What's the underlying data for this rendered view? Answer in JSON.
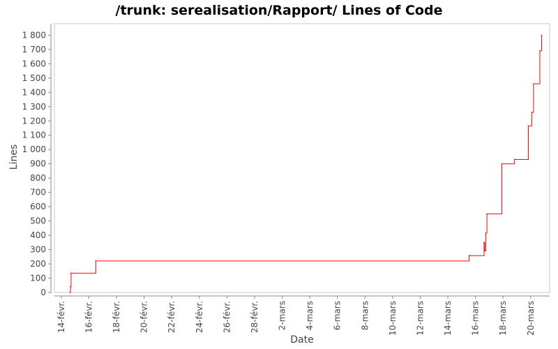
{
  "chart_data": {
    "type": "line",
    "title": "/trunk: serealisation/Rapport/ Lines of Code",
    "xlabel": "Date",
    "ylabel": "Lines",
    "x_axis": {
      "kind": "date",
      "range": [
        "2009-02-13T12:00:00",
        "2009-03-21T09:00:00"
      ],
      "ticks": [
        {
          "date": "2009-02-14",
          "label": "14-févr."
        },
        {
          "date": "2009-02-16",
          "label": "16-févr."
        },
        {
          "date": "2009-02-18",
          "label": "18-févr."
        },
        {
          "date": "2009-02-20",
          "label": "20-févr."
        },
        {
          "date": "2009-02-22",
          "label": "22-févr."
        },
        {
          "date": "2009-02-24",
          "label": "24-févr."
        },
        {
          "date": "2009-02-26",
          "label": "26-févr."
        },
        {
          "date": "2009-02-28",
          "label": "28-févr."
        },
        {
          "date": "2009-03-02",
          "label": "2-mars"
        },
        {
          "date": "2009-03-04",
          "label": "4-mars"
        },
        {
          "date": "2009-03-06",
          "label": "6-mars"
        },
        {
          "date": "2009-03-08",
          "label": "8-mars"
        },
        {
          "date": "2009-03-10",
          "label": "10-mars"
        },
        {
          "date": "2009-03-12",
          "label": "12-mars"
        },
        {
          "date": "2009-03-14",
          "label": "14-mars"
        },
        {
          "date": "2009-03-16",
          "label": "16-mars"
        },
        {
          "date": "2009-03-18",
          "label": "18-mars"
        },
        {
          "date": "2009-03-20",
          "label": "20-mars"
        }
      ]
    },
    "y_axis": {
      "range": [
        0,
        1880
      ],
      "ticks": [
        {
          "value": 0,
          "label": "0"
        },
        {
          "value": 100,
          "label": "100"
        },
        {
          "value": 200,
          "label": "200"
        },
        {
          "value": 300,
          "label": "300"
        },
        {
          "value": 400,
          "label": "400"
        },
        {
          "value": 500,
          "label": "500"
        },
        {
          "value": 600,
          "label": "600"
        },
        {
          "value": 700,
          "label": "700"
        },
        {
          "value": 800,
          "label": "800"
        },
        {
          "value": 900,
          "label": "900"
        },
        {
          "value": 1000,
          "label": "1 000"
        },
        {
          "value": 1100,
          "label": "1 100"
        },
        {
          "value": 1200,
          "label": "1 200"
        },
        {
          "value": 1300,
          "label": "1 300"
        },
        {
          "value": 1400,
          "label": "1 400"
        },
        {
          "value": 1500,
          "label": "1 500"
        },
        {
          "value": 1600,
          "label": "1 600"
        },
        {
          "value": 1700,
          "label": "1 700"
        },
        {
          "value": 1800,
          "label": "1 800"
        }
      ]
    },
    "grid": false,
    "legend": "none",
    "line_color": "#ff0000",
    "step": true,
    "series": [
      {
        "points": [
          {
            "x": "2009-02-14T15:00:00",
            "y": 0
          },
          {
            "x": "2009-02-14T16:00:00",
            "y": 40
          },
          {
            "x": "2009-02-14T17:00:00",
            "y": 135
          },
          {
            "x": "2009-02-16T12:00:00",
            "y": 220
          },
          {
            "x": "2009-03-15T13:00:00",
            "y": 258
          },
          {
            "x": "2009-03-16T15:00:00",
            "y": 350
          },
          {
            "x": "2009-03-16T16:00:00",
            "y": 290
          },
          {
            "x": "2009-03-16T18:00:00",
            "y": 415
          },
          {
            "x": "2009-03-16T20:00:00",
            "y": 550
          },
          {
            "x": "2009-03-17T22:00:00",
            "y": 900
          },
          {
            "x": "2009-03-18T20:00:00",
            "y": 930
          },
          {
            "x": "2009-03-19T20:00:00",
            "y": 1165
          },
          {
            "x": "2009-03-20T02:00:00",
            "y": 1260
          },
          {
            "x": "2009-03-20T05:00:00",
            "y": 1460
          },
          {
            "x": "2009-03-20T16:00:00",
            "y": 1690
          },
          {
            "x": "2009-03-20T19:00:00",
            "y": 1800
          }
        ]
      }
    ]
  }
}
